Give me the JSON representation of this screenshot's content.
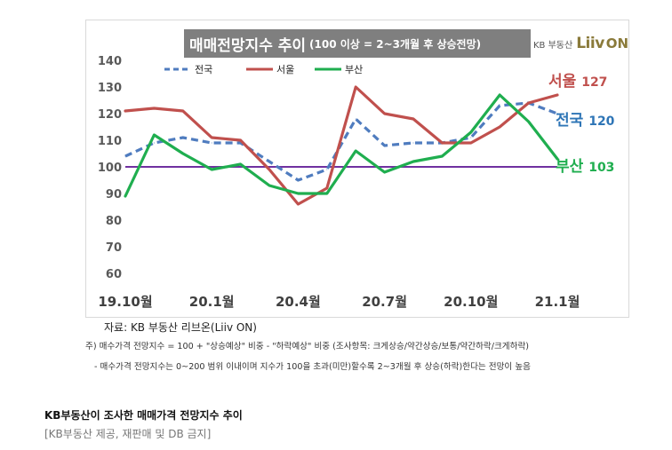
{
  "chart_data": {
    "type": "line",
    "title": "매매전망지수 추이",
    "subtitle": "(100 이상 = 2~3개월 후 상승전망)",
    "x": [
      "19.10",
      "19.11",
      "19.12",
      "20.1",
      "20.2",
      "20.3",
      "20.4",
      "20.5",
      "20.6",
      "20.7",
      "20.8",
      "20.9",
      "20.10",
      "20.11",
      "20.12",
      "21.1"
    ],
    "tick_labels": [
      "19.10월",
      "20.1월",
      "20.4월",
      "20.7월",
      "20.10월",
      "21.1월"
    ],
    "series": [
      {
        "name": "전국",
        "style": "dashed",
        "color": "#4f7cbf",
        "values": [
          104,
          109,
          111,
          109,
          109,
          102,
          95,
          99,
          118,
          108,
          109,
          109,
          111,
          123,
          124,
          120
        ]
      },
      {
        "name": "서울",
        "style": "solid",
        "color": "#c0504d",
        "values": [
          121,
          122,
          121,
          111,
          110,
          99,
          86,
          92,
          130,
          120,
          118,
          109,
          109,
          115,
          124,
          127
        ]
      },
      {
        "name": "부산",
        "style": "solid",
        "color": "#1fae4f",
        "values": [
          89,
          112,
          105,
          99,
          101,
          93,
          90,
          90,
          106,
          98,
          102,
          104,
          113,
          127,
          117,
          103
        ]
      }
    ],
    "reference_line": {
      "value": 100,
      "color": "#7030a0"
    },
    "end_labels": [
      {
        "series": "서울",
        "name": "서울",
        "value": "127",
        "color": "#c0504d"
      },
      {
        "series": "전국",
        "name": "전국",
        "value": "120",
        "color": "#2e75b6"
      },
      {
        "series": "부산",
        "name": "부산",
        "value": "103",
        "color": "#1fae4f"
      }
    ],
    "yticks": [
      "140",
      "130",
      "120",
      "110",
      "100",
      "90",
      "80",
      "70",
      "60"
    ],
    "ylim": [
      60,
      140
    ],
    "grid": false,
    "legend": "top-left"
  },
  "brand": {
    "kb": "KB 부동산",
    "liiv": "Liiv",
    "on": "ON"
  },
  "notes": {
    "source": "자료: KB 부동산 리브온(Liiv ON)",
    "footnote_1": "주) 매수가격 전망지수 = 100 + \"상승예상\" 비중 - \"하락예상\" 비중 (조사항목: 크게상승/약간상승/보통/약간하락/크게하락)",
    "footnote_2": "- 매수가격 전망지수는 0~200 범위 이내이며 지수가 100을 초과(미만)할수록 2~3개월 후 상승(하락)한다는 전망이 높음"
  },
  "caption": {
    "title": "KB부동산이 조사한 매매가격 전망지수 추이",
    "credit": "[KB부동산 제공, 재판매 및 DB 금지]"
  },
  "colors": {
    "reference": "#7030a0",
    "axis_text": "#595959",
    "tick_text": "#404040"
  }
}
